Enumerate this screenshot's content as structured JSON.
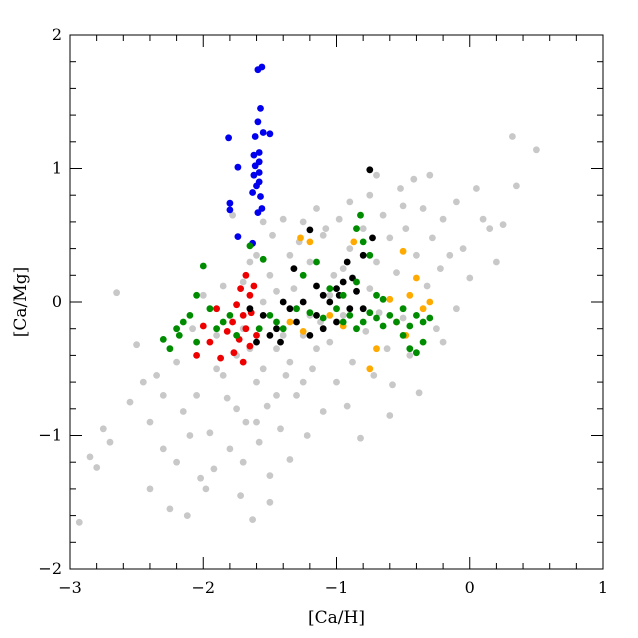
{
  "chart_data": {
    "type": "scatter",
    "title": "",
    "xlabel": "[Ca/H]",
    "ylabel": "[Ca/Mg]",
    "xlim": [
      -3,
      1
    ],
    "ylim": [
      -2,
      2
    ],
    "xticks": [
      -3,
      -2,
      -1,
      0,
      1
    ],
    "yticks": [
      -2,
      -1,
      0,
      1,
      2
    ],
    "xtick_labels": [
      "−3",
      "−2",
      "−1",
      "0",
      "1"
    ],
    "ytick_labels": [
      "−2",
      "−1",
      "0",
      "1",
      "2"
    ],
    "grid": false,
    "series": [
      {
        "color": "#c8c8c8",
        "points": [
          [
            -2.93,
            -1.65
          ],
          [
            -2.85,
            -1.16
          ],
          [
            -2.8,
            -1.24
          ],
          [
            -2.75,
            -0.95
          ],
          [
            -2.7,
            -1.05
          ],
          [
            -2.65,
            0.07
          ],
          [
            -2.55,
            -0.75
          ],
          [
            -2.5,
            -0.32
          ],
          [
            -2.45,
            -0.6
          ],
          [
            -2.4,
            -0.9
          ],
          [
            -2.35,
            -0.55
          ],
          [
            -2.3,
            -1.1
          ],
          [
            -2.25,
            -1.55
          ],
          [
            -2.2,
            -0.45
          ],
          [
            -2.15,
            -0.82
          ],
          [
            -2.12,
            -1.6
          ],
          [
            -2.08,
            -0.2
          ],
          [
            -2.05,
            -0.7
          ],
          [
            -2.02,
            -1.32
          ],
          [
            -2.0,
            0.05
          ],
          [
            -1.95,
            -0.98
          ],
          [
            -1.92,
            -1.25
          ],
          [
            -1.9,
            -0.5
          ],
          [
            -1.85,
            0.12
          ],
          [
            -1.82,
            -0.72
          ],
          [
            -1.8,
            -1.1
          ],
          [
            -1.78,
            0.65
          ],
          [
            -1.75,
            -0.4
          ],
          [
            -1.72,
            -1.45
          ],
          [
            -1.7,
            -0.2
          ],
          [
            -1.68,
            -0.9
          ],
          [
            -1.65,
            0.3
          ],
          [
            -1.63,
            -1.63
          ],
          [
            -1.6,
            -0.6
          ],
          [
            -1.58,
            -1.05
          ],
          [
            -1.55,
            0.0
          ],
          [
            -1.52,
            -0.78
          ],
          [
            -1.5,
            -1.3
          ],
          [
            -1.48,
            0.5
          ],
          [
            -1.45,
            -0.35
          ],
          [
            -1.42,
            -0.95
          ],
          [
            -1.4,
            0.62
          ],
          [
            -1.38,
            -0.55
          ],
          [
            -1.35,
            -1.18
          ],
          [
            -1.32,
            0.1
          ],
          [
            -1.3,
            -0.7
          ],
          [
            -1.28,
            0.45
          ],
          [
            -1.25,
            -0.25
          ],
          [
            -1.22,
            -1.0
          ],
          [
            -1.2,
            0.3
          ],
          [
            -1.18,
            -0.5
          ],
          [
            -1.15,
            0.7
          ],
          [
            -1.12,
            -0.15
          ],
          [
            -1.1,
            -0.82
          ],
          [
            -1.08,
            0.55
          ],
          [
            -1.05,
            -0.3
          ],
          [
            -1.02,
            0.2
          ],
          [
            -1.0,
            -0.6
          ],
          [
            -0.98,
            0.62
          ],
          [
            -0.95,
            -0.1
          ],
          [
            -0.92,
            -0.78
          ],
          [
            -0.9,
            0.4
          ],
          [
            -0.88,
            -0.45
          ],
          [
            -0.85,
            0.15
          ],
          [
            -0.82,
            -1.02
          ],
          [
            -0.8,
            0.55
          ],
          [
            -0.78,
            -0.22
          ],
          [
            -0.75,
            0.8
          ],
          [
            -0.72,
            -0.55
          ],
          [
            -0.7,
            0.3
          ],
          [
            -0.68,
            -0.08
          ],
          [
            -0.65,
            0.65
          ],
          [
            -0.62,
            -0.35
          ],
          [
            -0.6,
            0.48
          ],
          [
            -0.58,
            -0.62
          ],
          [
            -0.55,
            0.22
          ],
          [
            -0.52,
            0.85
          ],
          [
            -0.5,
            -0.12
          ],
          [
            -0.48,
            0.55
          ],
          [
            -0.45,
            -0.4
          ],
          [
            -0.42,
            0.92
          ],
          [
            -0.4,
            0.35
          ],
          [
            -0.38,
            -0.68
          ],
          [
            -0.35,
            0.7
          ],
          [
            -0.32,
            0.12
          ],
          [
            -0.3,
            0.95
          ],
          [
            -0.28,
            0.48
          ],
          [
            -0.25,
            -0.2
          ],
          [
            -0.22,
            0.25
          ],
          [
            -0.2,
            0.62
          ],
          [
            -0.15,
            0.35
          ],
          [
            -0.1,
            -0.05
          ],
          [
            -0.05,
            0.4
          ],
          [
            0.0,
            0.18
          ],
          [
            0.05,
            0.85
          ],
          [
            0.1,
            0.62
          ],
          [
            0.15,
            0.55
          ],
          [
            0.2,
            0.3
          ],
          [
            0.25,
            0.58
          ],
          [
            0.32,
            1.24
          ],
          [
            0.35,
            0.87
          ],
          [
            0.5,
            1.14
          ],
          [
            -1.7,
            0.15
          ],
          [
            -1.6,
            0.35
          ],
          [
            -1.5,
            0.2
          ],
          [
            -1.45,
            0.08
          ],
          [
            -1.35,
            0.35
          ],
          [
            -1.3,
            -0.05
          ],
          [
            -1.2,
            -0.1
          ],
          [
            -1.15,
            -0.35
          ],
          [
            -1.05,
            0.05
          ],
          [
            -0.95,
            0.25
          ],
          [
            -0.85,
            -0.2
          ],
          [
            -0.75,
            0.1
          ],
          [
            -1.9,
            -0.25
          ],
          [
            -1.85,
            -0.55
          ],
          [
            -1.75,
            -0.8
          ],
          [
            -1.65,
            -0.35
          ],
          [
            -1.55,
            -0.5
          ],
          [
            -1.45,
            -0.7
          ],
          [
            -1.4,
            -0.25
          ],
          [
            -1.35,
            -0.45
          ],
          [
            -1.25,
            -0.6
          ],
          [
            -1.55,
            0.6
          ],
          [
            -1.25,
            0.6
          ],
          [
            -1.1,
            0.5
          ],
          [
            -0.9,
            0.75
          ],
          [
            -2.3,
            -0.7
          ],
          [
            -2.1,
            -1.0
          ],
          [
            -2.2,
            -1.2
          ],
          [
            -1.98,
            -1.4
          ],
          [
            -2.4,
            -1.4
          ],
          [
            -1.6,
            -0.9
          ],
          [
            -1.7,
            -1.2
          ],
          [
            -1.5,
            -1.5
          ],
          [
            -0.6,
            -0.85
          ],
          [
            -0.7,
            0.95
          ],
          [
            -0.5,
            0.72
          ],
          [
            -0.2,
            -0.3
          ],
          [
            -0.1,
            0.75
          ]
        ]
      },
      {
        "color": "#0000ee",
        "points": [
          [
            -1.56,
            1.76
          ],
          [
            -1.59,
            1.74
          ],
          [
            -1.57,
            1.45
          ],
          [
            -1.59,
            1.35
          ],
          [
            -1.55,
            1.27
          ],
          [
            -1.5,
            1.26
          ],
          [
            -1.61,
            1.24
          ],
          [
            -1.81,
            1.23
          ],
          [
            -1.58,
            1.12
          ],
          [
            -1.62,
            1.1
          ],
          [
            -1.58,
            1.05
          ],
          [
            -1.61,
            1.02
          ],
          [
            -1.74,
            1.01
          ],
          [
            -1.58,
            0.97
          ],
          [
            -1.62,
            0.95
          ],
          [
            -1.58,
            0.9
          ],
          [
            -1.6,
            0.87
          ],
          [
            -1.63,
            0.82
          ],
          [
            -1.57,
            0.79
          ],
          [
            -1.8,
            0.74
          ],
          [
            -1.56,
            0.7
          ],
          [
            -1.8,
            0.69
          ],
          [
            -1.59,
            0.67
          ],
          [
            -1.74,
            0.49
          ],
          [
            -1.63,
            0.44
          ]
        ]
      },
      {
        "color": "#ee0000",
        "points": [
          [
            -1.68,
            0.2
          ],
          [
            -1.72,
            0.1
          ],
          [
            -1.65,
            0.05
          ],
          [
            -1.75,
            -0.02
          ],
          [
            -1.7,
            -0.1
          ],
          [
            -1.78,
            -0.15
          ],
          [
            -1.68,
            -0.2
          ],
          [
            -1.73,
            -0.28
          ],
          [
            -1.65,
            -0.33
          ],
          [
            -1.77,
            -0.38
          ],
          [
            -1.7,
            -0.45
          ],
          [
            -1.82,
            -0.22
          ],
          [
            -1.9,
            -0.05
          ],
          [
            -1.95,
            -0.3
          ],
          [
            -2.0,
            -0.18
          ],
          [
            -1.64,
            -0.08
          ],
          [
            -1.62,
            0.12
          ],
          [
            -1.87,
            -0.42
          ],
          [
            -1.6,
            -0.25
          ],
          [
            -2.05,
            -0.4
          ]
        ]
      },
      {
        "color": "#000000",
        "points": [
          [
            -0.75,
            0.99
          ],
          [
            -1.2,
            0.54
          ],
          [
            -0.73,
            0.48
          ],
          [
            -0.8,
            0.35
          ],
          [
            -0.92,
            0.3
          ],
          [
            -0.95,
            0.15
          ],
          [
            -1.0,
            0.1
          ],
          [
            -0.98,
            0.05
          ],
          [
            -1.05,
            0.0
          ],
          [
            -0.9,
            -0.05
          ],
          [
            -1.1,
            0.05
          ],
          [
            -1.15,
            -0.1
          ],
          [
            -1.25,
            0.0
          ],
          [
            -1.3,
            -0.15
          ],
          [
            -1.35,
            -0.05
          ],
          [
            -1.4,
            0.0
          ],
          [
            -1.45,
            -0.2
          ],
          [
            -1.5,
            -0.25
          ],
          [
            -1.55,
            -0.1
          ],
          [
            -1.6,
            -0.3
          ],
          [
            -1.2,
            -0.25
          ],
          [
            -1.1,
            -0.2
          ],
          [
            -1.0,
            -0.15
          ],
          [
            -0.85,
            0.08
          ],
          [
            -0.8,
            -0.05
          ],
          [
            -1.65,
            -0.05
          ],
          [
            -1.32,
            0.25
          ],
          [
            -0.88,
            0.18
          ],
          [
            -1.15,
            0.12
          ],
          [
            -1.42,
            -0.3
          ]
        ]
      },
      {
        "color": "#ffaa00",
        "points": [
          [
            -1.27,
            0.48
          ],
          [
            -1.2,
            0.45
          ],
          [
            -0.87,
            0.45
          ],
          [
            -0.5,
            0.38
          ],
          [
            -0.4,
            0.18
          ],
          [
            -0.45,
            0.05
          ],
          [
            -0.6,
            0.02
          ],
          [
            -0.3,
            0.0
          ],
          [
            -0.35,
            -0.05
          ],
          [
            -1.05,
            -0.1
          ],
          [
            -0.95,
            -0.18
          ],
          [
            -1.25,
            -0.22
          ],
          [
            -1.35,
            -0.15
          ],
          [
            -0.7,
            -0.35
          ],
          [
            -0.75,
            -0.5
          ],
          [
            -0.55,
            -0.15
          ],
          [
            -0.48,
            -0.25
          ]
        ]
      },
      {
        "color": "#008c00",
        "points": [
          [
            -2.0,
            0.27
          ],
          [
            -1.65,
            0.42
          ],
          [
            -1.55,
            0.32
          ],
          [
            -0.82,
            0.65
          ],
          [
            -0.85,
            0.55
          ],
          [
            -0.8,
            0.45
          ],
          [
            -0.75,
            0.35
          ],
          [
            -2.2,
            -0.2
          ],
          [
            -2.25,
            -0.35
          ],
          [
            -2.3,
            -0.28
          ],
          [
            -2.15,
            -0.15
          ],
          [
            -2.1,
            -0.1
          ],
          [
            -2.05,
            -0.3
          ],
          [
            -1.95,
            -0.05
          ],
          [
            -1.9,
            -0.2
          ],
          [
            -1.85,
            -0.15
          ],
          [
            -1.8,
            -0.1
          ],
          [
            -1.75,
            -0.25
          ],
          [
            -1.5,
            -0.1
          ],
          [
            -1.45,
            -0.15
          ],
          [
            -1.4,
            -0.2
          ],
          [
            -1.3,
            -0.05
          ],
          [
            -1.2,
            -0.08
          ],
          [
            -1.1,
            -0.12
          ],
          [
            -1.0,
            -0.05
          ],
          [
            -0.95,
            -0.15
          ],
          [
            -0.9,
            -0.1
          ],
          [
            -0.85,
            -0.2
          ],
          [
            -0.8,
            -0.15
          ],
          [
            -0.75,
            -0.08
          ],
          [
            -0.7,
            -0.12
          ],
          [
            -0.65,
            -0.18
          ],
          [
            -0.6,
            -0.1
          ],
          [
            -0.55,
            -0.15
          ],
          [
            -0.5,
            -0.05
          ],
          [
            -0.45,
            -0.18
          ],
          [
            -0.4,
            -0.1
          ],
          [
            -0.35,
            -0.15
          ],
          [
            -0.3,
            -0.12
          ],
          [
            -0.5,
            -0.25
          ],
          [
            -0.45,
            -0.35
          ],
          [
            -0.4,
            -0.38
          ],
          [
            -0.35,
            -0.3
          ],
          [
            -1.25,
            0.2
          ],
          [
            -1.15,
            0.3
          ],
          [
            -1.05,
            0.1
          ],
          [
            -0.95,
            0.05
          ],
          [
            -0.85,
            0.15
          ],
          [
            -0.7,
            0.05
          ],
          [
            -0.65,
            0.02
          ],
          [
            -2.05,
            0.05
          ],
          [
            -2.18,
            -0.25
          ],
          [
            -1.58,
            -0.2
          ]
        ]
      }
    ]
  }
}
